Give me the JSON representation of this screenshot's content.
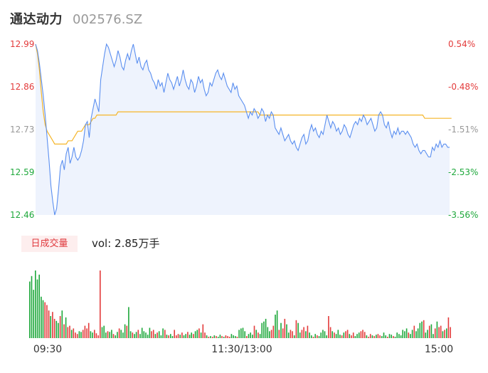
{
  "header": {
    "name": "通达动力",
    "code": "002576.SZ"
  },
  "colors": {
    "price": "#5b8ff0",
    "avg": "#f5b528",
    "up": "#e33b3b",
    "down": "#1ea83b",
    "flat": "#999999",
    "area": "#eef3fd"
  },
  "volume": {
    "tag": "日成交量",
    "label": "vol: 2.85万手"
  },
  "chart_data": {
    "type": "line",
    "y_ticks_left": [
      "12.99",
      "12.86",
      "12.73",
      "12.59",
      "12.46"
    ],
    "y_ticks_right": [
      "0.54%",
      "-0.48%",
      "-1.51%",
      "-2.53%",
      "-3.56%"
    ],
    "x_ticks": [
      "09:30",
      "11:30/13:00",
      "15:00"
    ],
    "ylim": [
      12.46,
      12.99
    ],
    "grid": false,
    "price": [
      12.99,
      12.97,
      12.93,
      12.88,
      12.83,
      12.77,
      12.7,
      12.63,
      12.55,
      12.5,
      12.46,
      12.48,
      12.54,
      12.61,
      12.63,
      12.6,
      12.65,
      12.67,
      12.62,
      12.64,
      12.67,
      12.64,
      12.63,
      12.64,
      12.66,
      12.69,
      12.74,
      12.75,
      12.7,
      12.76,
      12.79,
      12.82,
      12.8,
      12.78,
      12.88,
      12.92,
      12.96,
      12.99,
      12.98,
      12.96,
      12.94,
      12.92,
      12.94,
      12.97,
      12.95,
      12.92,
      12.91,
      12.94,
      12.96,
      12.94,
      12.97,
      12.99,
      12.96,
      12.93,
      12.95,
      12.92,
      12.91,
      12.93,
      12.94,
      12.91,
      12.9,
      12.88,
      12.87,
      12.85,
      12.88,
      12.86,
      12.87,
      12.84,
      12.87,
      12.9,
      12.88,
      12.87,
      12.85,
      12.87,
      12.89,
      12.86,
      12.88,
      12.91,
      12.88,
      12.86,
      12.85,
      12.88,
      12.87,
      12.84,
      12.86,
      12.89,
      12.87,
      12.88,
      12.85,
      12.83,
      12.84,
      12.87,
      12.86,
      12.88,
      12.9,
      12.91,
      12.89,
      12.88,
      12.9,
      12.88,
      12.86,
      12.85,
      12.84,
      12.87,
      12.85,
      12.86,
      12.83,
      12.82,
      12.81,
      12.8,
      12.78,
      12.76,
      12.78,
      12.77,
      12.79,
      12.78,
      12.76,
      12.77,
      12.79,
      12.78,
      12.75,
      12.77,
      12.76,
      12.78,
      12.77,
      12.73,
      12.72,
      12.71,
      12.73,
      12.71,
      12.69,
      12.7,
      12.71,
      12.69,
      12.68,
      12.69,
      12.67,
      12.66,
      12.68,
      12.7,
      12.71,
      12.68,
      12.69,
      12.72,
      12.74,
      12.72,
      12.73,
      12.71,
      12.7,
      12.72,
      12.71,
      12.74,
      12.77,
      12.75,
      12.73,
      12.75,
      12.74,
      12.72,
      12.73,
      12.71,
      12.72,
      12.74,
      12.73,
      12.71,
      12.7,
      12.72,
      12.74,
      12.75,
      12.74,
      12.76,
      12.75,
      12.77,
      12.76,
      12.74,
      12.75,
      12.76,
      12.74,
      12.72,
      12.73,
      12.77,
      12.78,
      12.77,
      12.74,
      12.73,
      12.75,
      12.72,
      12.7,
      12.72,
      12.71,
      12.73,
      12.71,
      12.72,
      12.72,
      12.71,
      12.72,
      12.71,
      12.7,
      12.68,
      12.67,
      12.68,
      12.66,
      12.65,
      12.66,
      12.66,
      12.65,
      12.64,
      12.64,
      12.67,
      12.66,
      12.68,
      12.67,
      12.69,
      12.67,
      12.68,
      12.68,
      12.67,
      12.67
    ],
    "avg_price": [
      12.99,
      12.96,
      12.91,
      12.84,
      12.78,
      12.74,
      12.72,
      12.71,
      12.7,
      12.69,
      12.68,
      12.68,
      12.68,
      12.68,
      12.68,
      12.68,
      12.68,
      12.69,
      12.69,
      12.69,
      12.7,
      12.71,
      12.72,
      12.72,
      12.72,
      12.73,
      12.74,
      12.74,
      12.74,
      12.75,
      12.76,
      12.76,
      12.77,
      12.77,
      12.77,
      12.77,
      12.77,
      12.77,
      12.77,
      12.77,
      12.77,
      12.77,
      12.77,
      12.78,
      12.78,
      12.78,
      12.78,
      12.78,
      12.78,
      12.78,
      12.78,
      12.78,
      12.78,
      12.78,
      12.78,
      12.78,
      12.78,
      12.78,
      12.78,
      12.78,
      12.78,
      12.78,
      12.78,
      12.78,
      12.78,
      12.78,
      12.78,
      12.78,
      12.78,
      12.78,
      12.78,
      12.78,
      12.78,
      12.78,
      12.78,
      12.78,
      12.78,
      12.78,
      12.78,
      12.78,
      12.78,
      12.78,
      12.78,
      12.78,
      12.78,
      12.78,
      12.78,
      12.78,
      12.78,
      12.78,
      12.78,
      12.78,
      12.78,
      12.78,
      12.78,
      12.78,
      12.78,
      12.78,
      12.78,
      12.78,
      12.78,
      12.78,
      12.78,
      12.78,
      12.78,
      12.78,
      12.78,
      12.78,
      12.78,
      12.78,
      12.78,
      12.78,
      12.78,
      12.78,
      12.78,
      12.78,
      12.78,
      12.77,
      12.77,
      12.77,
      12.77,
      12.77,
      12.77,
      12.77,
      12.77,
      12.77,
      12.77,
      12.77,
      12.77,
      12.77,
      12.77,
      12.77,
      12.77,
      12.77,
      12.77,
      12.77,
      12.77,
      12.77,
      12.77,
      12.77,
      12.77,
      12.77,
      12.77,
      12.77,
      12.77,
      12.77,
      12.77,
      12.77,
      12.77,
      12.77,
      12.77,
      12.77,
      12.77,
      12.77,
      12.77,
      12.77,
      12.77,
      12.77,
      12.77,
      12.77,
      12.77,
      12.77,
      12.77,
      12.77,
      12.77,
      12.77,
      12.77,
      12.77,
      12.77,
      12.77,
      12.77,
      12.77,
      12.77,
      12.77,
      12.77,
      12.77,
      12.77,
      12.77,
      12.77,
      12.77,
      12.77,
      12.77,
      12.77,
      12.77,
      12.77,
      12.77,
      12.77,
      12.77,
      12.77,
      12.77,
      12.77,
      12.77,
      12.77,
      12.77,
      12.77,
      12.77,
      12.77,
      12.77,
      12.77,
      12.77,
      12.77,
      12.77,
      12.77,
      12.76,
      12.76,
      12.76,
      12.76,
      12.76,
      12.76,
      12.76,
      12.76,
      12.76,
      12.76,
      12.76,
      12.76,
      12.76,
      12.76,
      12.76
    ],
    "volume": [
      82,
      90,
      70,
      98,
      85,
      92,
      60,
      55,
      52,
      48,
      40,
      32,
      38,
      28,
      25,
      22,
      32,
      40,
      20,
      30,
      16,
      18,
      12,
      14,
      8,
      6,
      10,
      9,
      12,
      18,
      14,
      22,
      10,
      8,
      12,
      7,
      4,
      98,
      16,
      18,
      8,
      10,
      9,
      12,
      6,
      4,
      9,
      14,
      12,
      8,
      20,
      18,
      45,
      10,
      8,
      6,
      9,
      12,
      6,
      15,
      10,
      8,
      5,
      15,
      10,
      12,
      6,
      8,
      10,
      4,
      14,
      12,
      5,
      4,
      6,
      3,
      12,
      4,
      6,
      5,
      8,
      4,
      6,
      9,
      5,
      8,
      6,
      10,
      12,
      14,
      8,
      20,
      8,
      4,
      2,
      3,
      2,
      4,
      3,
      2,
      5,
      3,
      2,
      4,
      3,
      2,
      6,
      4,
      3,
      2,
      12,
      14,
      15,
      10,
      3,
      6,
      8,
      5,
      18,
      12,
      8,
      6,
      22,
      24,
      28,
      16,
      10,
      12,
      18,
      34,
      40,
      12,
      22,
      14,
      28,
      20,
      8,
      12,
      10,
      4,
      26,
      22,
      8,
      12,
      16,
      10,
      18,
      8,
      4,
      2,
      6,
      4,
      3,
      8,
      12,
      10,
      4,
      32,
      16,
      10,
      8,
      6,
      12,
      5,
      4,
      8,
      10,
      12,
      6,
      4,
      8,
      3,
      6,
      8,
      10,
      12,
      9,
      4,
      2,
      6,
      4,
      3,
      5,
      6,
      4,
      3,
      8,
      4,
      2,
      6,
      5,
      3,
      2,
      8,
      6,
      4,
      12,
      10,
      14,
      8,
      6,
      12,
      18,
      10,
      14,
      22,
      24,
      26,
      8,
      12,
      18,
      20,
      6,
      14,
      24,
      16,
      18,
      10,
      12,
      14,
      30,
      16
    ],
    "volume_dir": [
      "d",
      "d",
      "d",
      "d",
      "d",
      "d",
      "d",
      "d",
      "u",
      "u",
      "u",
      "d",
      "u",
      "u",
      "d",
      "d",
      "u",
      "d",
      "u",
      "d",
      "u",
      "u",
      "d",
      "u",
      "u",
      "u",
      "d",
      "d",
      "u",
      "u",
      "u",
      "u",
      "d",
      "d",
      "u",
      "u",
      "u",
      "u",
      "d",
      "d",
      "d",
      "u",
      "d",
      "d",
      "u",
      "d",
      "d",
      "u",
      "d",
      "d",
      "d",
      "u",
      "d",
      "d",
      "u",
      "d",
      "d",
      "u",
      "d",
      "d",
      "d",
      "d",
      "d",
      "d",
      "u",
      "u",
      "d",
      "u",
      "d",
      "d",
      "d",
      "u",
      "d",
      "u",
      "d",
      "d",
      "u",
      "u",
      "u",
      "d",
      "u",
      "d",
      "d",
      "u",
      "d",
      "d",
      "u",
      "d",
      "d",
      "u",
      "d",
      "u",
      "u",
      "d",
      "u",
      "d",
      "u",
      "d",
      "u",
      "d",
      "d",
      "u",
      "d",
      "u",
      "u",
      "u",
      "d",
      "d",
      "d",
      "u",
      "d",
      "d",
      "d",
      "d",
      "u",
      "d",
      "d",
      "d",
      "u",
      "d",
      "u",
      "d",
      "d",
      "d",
      "d",
      "d",
      "d",
      "u",
      "u",
      "d",
      "d",
      "u",
      "d",
      "u",
      "u",
      "d",
      "d",
      "u",
      "u",
      "d",
      "u",
      "d",
      "d",
      "u",
      "u",
      "d",
      "u",
      "d",
      "d",
      "u",
      "d",
      "u",
      "d",
      "d",
      "d",
      "d",
      "d",
      "u",
      "u",
      "d",
      "u",
      "d",
      "d",
      "d",
      "u",
      "d",
      "u",
      "u",
      "d",
      "u",
      "u",
      "d",
      "d",
      "d",
      "u",
      "u",
      "u",
      "d",
      "u",
      "u",
      "d",
      "u",
      "d",
      "u",
      "u",
      "d",
      "d",
      "d",
      "u",
      "d",
      "d",
      "u",
      "d",
      "d",
      "d",
      "d",
      "d",
      "d",
      "d",
      "u",
      "d",
      "d",
      "u",
      "d",
      "d",
      "d",
      "d",
      "u",
      "d",
      "d",
      "u",
      "d",
      "d",
      "u",
      "d",
      "u",
      "u",
      "d",
      "u",
      "d",
      "u",
      "u",
      "d",
      "u"
    ]
  }
}
